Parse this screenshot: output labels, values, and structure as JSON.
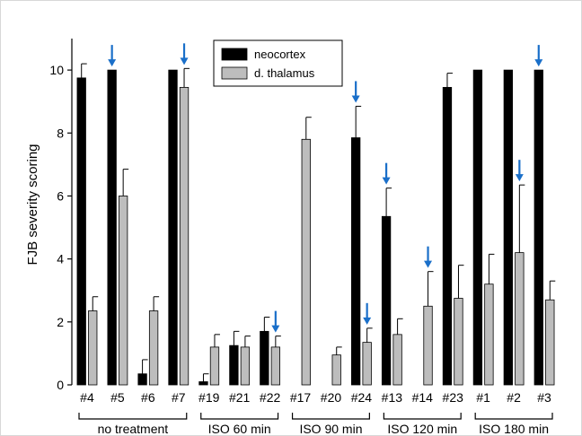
{
  "chart_data": {
    "type": "bar",
    "ylabel": "FJB severity scoring",
    "xlabel": "",
    "ylim": [
      0,
      11
    ],
    "yticks": [
      0,
      2,
      4,
      6,
      8,
      10
    ],
    "legend_position": "top-center",
    "categories": [
      "#4",
      "#5",
      "#6",
      "#7",
      "#19",
      "#21",
      "#22",
      "#17",
      "#20",
      "#24",
      "#13",
      "#14",
      "#23",
      "#1",
      "#2",
      "#3"
    ],
    "series": [
      {
        "name": "neocortex",
        "color": "#000000",
        "values": [
          9.75,
          10.0,
          0.35,
          10.0,
          0.1,
          1.25,
          1.7,
          0.0,
          0.0,
          7.85,
          5.35,
          0.0,
          9.45,
          10.0,
          10.0,
          10.0
        ],
        "error": [
          0.45,
          0.0,
          0.45,
          0.0,
          0.25,
          0.45,
          0.45,
          0.0,
          0.0,
          1.0,
          0.9,
          0.0,
          0.45,
          0.0,
          0.0,
          0.0
        ],
        "arrows": [
          false,
          true,
          false,
          false,
          false,
          false,
          false,
          false,
          false,
          true,
          true,
          false,
          false,
          false,
          false,
          true
        ]
      },
      {
        "name": "d. thalamus",
        "color": "#bdbdbd",
        "values": [
          2.35,
          6.0,
          2.35,
          9.45,
          1.2,
          1.2,
          1.2,
          7.8,
          0.95,
          1.35,
          1.6,
          2.5,
          2.75,
          3.2,
          4.2,
          2.7
        ],
        "error": [
          0.45,
          0.85,
          0.45,
          0.6,
          0.4,
          0.35,
          0.35,
          0.7,
          0.25,
          0.45,
          0.5,
          1.1,
          1.05,
          0.95,
          2.15,
          0.6
        ],
        "arrows": [
          false,
          false,
          false,
          true,
          false,
          false,
          true,
          false,
          false,
          true,
          false,
          true,
          false,
          false,
          true,
          false
        ]
      }
    ],
    "groups": [
      {
        "label": "no treatment",
        "start": 0,
        "end": 3
      },
      {
        "label": "ISO 60 min",
        "start": 4,
        "end": 6
      },
      {
        "label": "ISO 90 min",
        "start": 7,
        "end": 9
      },
      {
        "label": "ISO 120 min",
        "start": 10,
        "end": 12
      },
      {
        "label": "ISO 180 min",
        "start": 13,
        "end": 15
      }
    ],
    "arrow_color": "#1a6fc9"
  }
}
